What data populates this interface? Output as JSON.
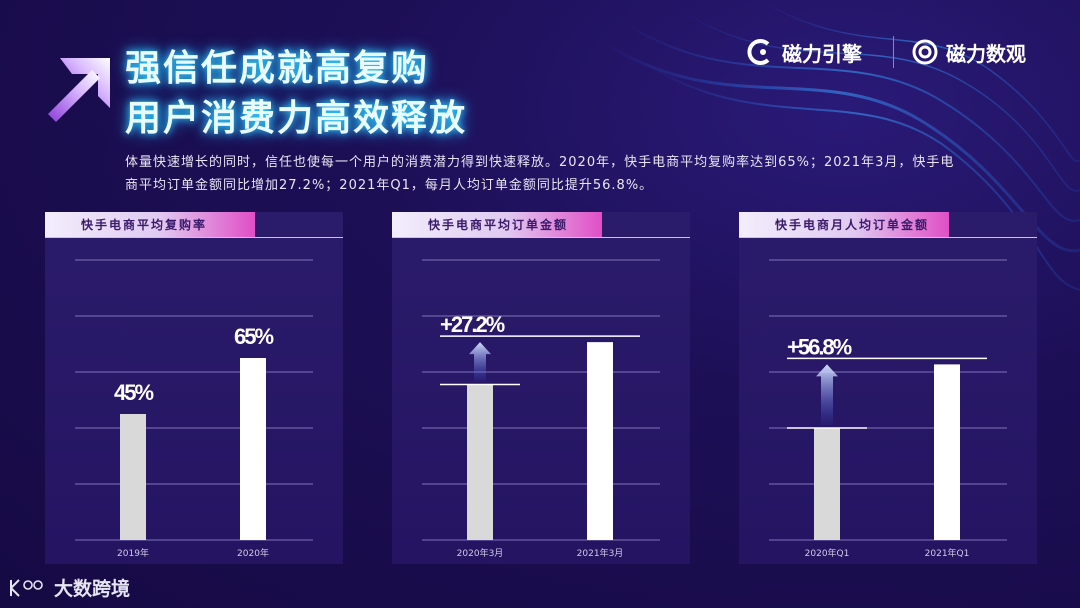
{
  "title": {
    "line1": "强信任成就高复购",
    "line2": "用户消费力高效释放"
  },
  "brands": {
    "left": "磁力引擎",
    "right": "磁力数观"
  },
  "description": "体量快速增长的同时，信任也使每一个用户的消费潜力得到快速释放。2020年，快手电商平均复购率达到65%；2021年3月，快手电商平均订单金额同比增加27.2%；2021年Q1，每月人均订单金额同比提升56.8%。",
  "footer": {
    "logo_text": "大数跨境"
  },
  "colors": {
    "background": "#1b0d4f",
    "accent_pink": "#e04fc6",
    "title_glow": "#35d6ff",
    "bar_prev": "#d9d9d9",
    "bar_curr": "#ffffff"
  },
  "chart_data": [
    {
      "type": "bar",
      "title": "快手电商平均复购率",
      "categories": [
        "2019年",
        "2020年"
      ],
      "values": [
        45,
        65
      ],
      "value_labels": [
        "45%",
        "65%"
      ],
      "ylim": [
        0,
        100
      ],
      "grid": true
    },
    {
      "type": "bar",
      "title": "快手电商平均订单金额",
      "categories": [
        "2020年3月",
        "2021年3月"
      ],
      "values": [
        100,
        127.2
      ],
      "growth_label": "+27.2%",
      "ylim": [
        0,
        180
      ],
      "grid": true
    },
    {
      "type": "bar",
      "title": "快手电商月人均订单金额",
      "categories": [
        "2020年Q1",
        "2021年Q1"
      ],
      "values": [
        100,
        156.8
      ],
      "growth_label": "+56.8%",
      "ylim": [
        0,
        250
      ],
      "grid": true
    }
  ]
}
